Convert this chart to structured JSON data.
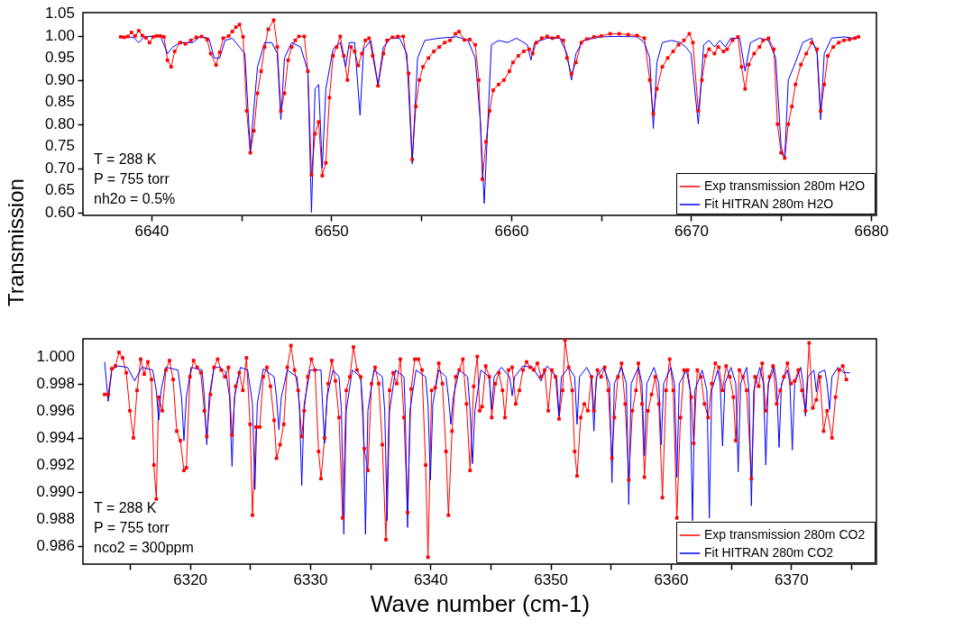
{
  "chart_data": [
    {
      "type": "line",
      "ylabel": "Transmission",
      "legend": "bottom right",
      "grid": false,
      "annotations": [
        "T = 288 K",
        "P = 755 torr",
        "nh2o = 0.5%"
      ],
      "xlim": [
        6636.2,
        6680.3
      ],
      "ylim": [
        0.593,
        1.053
      ],
      "xticks": [
        6640,
        {
          "value": 6645,
          "label": null
        },
        6650,
        {
          "value": 6655,
          "label": null
        },
        6660,
        {
          "value": 6665,
          "label": null
        },
        6670,
        {
          "value": 6675,
          "label": null
        },
        6680
      ],
      "yticks": [
        {
          "value": 0.6,
          "label": "0.60"
        },
        {
          "value": 0.65,
          "label": "0.65"
        },
        {
          "value": 0.7,
          "label": "0.70"
        },
        {
          "value": 0.75,
          "label": "0.75"
        },
        {
          "value": 0.8,
          "label": "0.80"
        },
        {
          "value": 0.85,
          "label": "0.85"
        },
        {
          "value": 0.9,
          "label": "0.90"
        },
        {
          "value": 0.95,
          "label": "0.95"
        },
        {
          "value": 1.0,
          "label": "1.00"
        },
        {
          "value": 1.05,
          "label": "1.05"
        }
      ],
      "series": [
        {
          "name": "Exp transmission   280m H2O",
          "color": "#ff0000",
          "marker": "square",
          "x": [
            6638.3,
            6638.5,
            6638.7,
            6638.9,
            6639.1,
            6639.3,
            6639.5,
            6639.7,
            6639.9,
            6640.1,
            6640.3,
            6640.5,
            6640.7,
            6640.9,
            6641.1,
            6641.3,
            6641.6,
            6641.9,
            6642.2,
            6642.5,
            6642.8,
            6643.1,
            6643.3,
            6643.6,
            6643.8,
            6644.0,
            6644.3,
            6644.5,
            6644.7,
            6644.9,
            6645.1,
            6645.3,
            6645.5,
            6645.7,
            6645.9,
            6646.1,
            6646.3,
            6646.5,
            6646.8,
            6647.0,
            6647.2,
            6647.4,
            6647.6,
            6647.8,
            6648.0,
            6648.2,
            6648.5,
            6648.7,
            6648.9,
            6649.1,
            6649.3,
            6649.5,
            6649.7,
            6649.9,
            6650.1,
            6650.3,
            6650.5,
            6650.7,
            6650.9,
            6651.1,
            6651.3,
            6651.5,
            6651.7,
            6651.9,
            6652.1,
            6652.3,
            6652.6,
            6652.9,
            6653.1,
            6653.4,
            6653.7,
            6654.0,
            6654.3,
            6654.5,
            6654.7,
            6654.9,
            6655.1,
            6655.4,
            6655.7,
            6656.0,
            6656.3,
            6656.6,
            6656.9,
            6657.1,
            6657.4,
            6657.7,
            6658.0,
            6658.2,
            6658.4,
            6658.6,
            6658.8,
            6659.0,
            6659.3,
            6659.6,
            6659.9,
            6660.1,
            6660.4,
            6660.7,
            6661.0,
            6661.2,
            6661.4,
            6661.7,
            6662.0,
            6662.3,
            6662.6,
            6662.9,
            6663.1,
            6663.35,
            6663.6,
            6663.9,
            6664.2,
            6664.6,
            6665.0,
            6665.5,
            6666.0,
            6666.5,
            6667.0,
            6667.4,
            6667.7,
            6667.9,
            6668.1,
            6668.4,
            6668.7,
            6669.0,
            6669.3,
            6669.6,
            6669.9,
            6670.1,
            6670.4,
            6670.6,
            6670.8,
            6671.0,
            6671.3,
            6671.5,
            6671.8,
            6672.0,
            6672.3,
            6672.6,
            6672.8,
            6673.0,
            6673.2,
            6673.5,
            6673.8,
            6674.0,
            6674.3,
            6674.6,
            6674.8,
            6675.0,
            6675.2,
            6675.4,
            6675.6,
            6675.8,
            6676.1,
            6676.4,
            6676.7,
            6677.0,
            6677.2,
            6677.4,
            6677.6,
            6677.9,
            6678.2,
            6678.5,
            6678.8,
            6679.1,
            6679.3
          ],
          "values": [
            0.998,
            0.997,
            0.999,
            1.008,
            1.0,
            1.012,
            1.001,
            0.996,
            0.985,
            0.998,
            1.0,
            1.0,
            0.998,
            0.945,
            0.93,
            0.965,
            0.985,
            0.982,
            0.99,
            0.997,
            0.999,
            0.992,
            0.96,
            0.934,
            0.963,
            0.995,
            1.0,
            1.01,
            1.02,
            1.026,
            0.998,
            0.83,
            0.735,
            0.785,
            0.87,
            0.92,
            0.975,
            1.015,
            1.036,
            0.975,
            0.83,
            0.87,
            0.945,
            0.975,
            0.99,
            0.999,
            0.999,
            0.92,
            0.685,
            0.778,
            0.805,
            0.683,
            0.712,
            0.86,
            0.955,
            0.975,
            0.999,
            0.955,
            0.9,
            0.975,
            0.965,
            0.933,
            0.96,
            0.99,
            0.995,
            0.955,
            0.887,
            0.96,
            0.99,
            0.997,
            0.999,
            0.999,
            0.915,
            0.72,
            0.84,
            0.9,
            0.93,
            0.95,
            0.965,
            0.975,
            0.985,
            0.99,
            1.005,
            1.01,
            0.991,
            0.992,
            0.98,
            0.9,
            0.675,
            0.76,
            0.83,
            0.877,
            0.89,
            0.9,
            0.92,
            0.94,
            0.955,
            0.965,
            0.97,
            0.96,
            0.985,
            0.995,
            0.999,
            0.995,
            0.998,
            0.99,
            0.95,
            0.914,
            0.94,
            0.985,
            0.993,
            0.998,
            1.0,
            1.005,
            1.005,
            1.003,
            1.001,
            0.995,
            0.9,
            0.823,
            0.88,
            0.93,
            0.95,
            0.965,
            0.98,
            0.99,
            1.005,
            0.985,
            0.83,
            0.9,
            0.955,
            0.97,
            0.96,
            0.975,
            0.965,
            0.97,
            0.99,
            0.998,
            0.93,
            0.88,
            0.935,
            0.96,
            0.975,
            0.99,
            0.995,
            0.97,
            0.8,
            0.735,
            0.723,
            0.8,
            0.84,
            0.89,
            0.935,
            0.96,
            0.985,
            0.97,
            0.83,
            0.89,
            0.955,
            0.975,
            0.985,
            0.99,
            0.992,
            0.995,
            0.998
          ]
        },
        {
          "name": "Fit HITRAN 280m H2O",
          "color": "#0000ff",
          "marker": "none",
          "x": [
            6638.3,
            6639.0,
            6639.3,
            6639.6,
            6640.5,
            6640.9,
            6641.2,
            6641.6,
            6642.0,
            6642.3,
            6642.7,
            6643.2,
            6643.5,
            6643.8,
            6644.1,
            6644.5,
            6644.9,
            6645.2,
            6645.5,
            6645.9,
            6646.3,
            6646.7,
            6647.0,
            6647.2,
            6647.4,
            6647.8,
            6648.3,
            6648.7,
            6648.9,
            6649.1,
            6649.3,
            6649.5,
            6649.7,
            6650.1,
            6650.5,
            6650.8,
            6651.0,
            6651.3,
            6651.6,
            6651.8,
            6652.2,
            6652.6,
            6652.9,
            6653.3,
            6653.8,
            6654.2,
            6654.5,
            6654.8,
            6655.2,
            6656.0,
            6657.0,
            6657.6,
            6658.0,
            6658.3,
            6658.5,
            6658.7,
            6658.9,
            6659.3,
            6659.8,
            6660.3,
            6660.9,
            6661.1,
            6661.3,
            6662.0,
            6662.7,
            6663.1,
            6663.35,
            6663.6,
            6664.0,
            6665.0,
            6666.0,
            6667.0,
            6667.4,
            6667.7,
            6667.9,
            6668.1,
            6668.4,
            6668.9,
            6669.4,
            6669.7,
            6670.0,
            6670.4,
            6670.7,
            6671.0,
            6671.3,
            6671.6,
            6671.9,
            6672.2,
            6672.7,
            6673.0,
            6673.3,
            6673.8,
            6674.3,
            6674.7,
            6675.0,
            6675.2,
            6675.4,
            6675.8,
            6676.2,
            6676.7,
            6677.0,
            6677.2,
            6677.4,
            6677.8,
            6678.5,
            6679.0,
            6679.3
          ],
          "values": [
            0.998,
            0.997,
            0.985,
            0.998,
            1.0,
            0.96,
            0.975,
            0.985,
            0.985,
            0.985,
            0.998,
            0.995,
            0.95,
            0.95,
            0.99,
            0.995,
            0.975,
            0.96,
            0.74,
            0.93,
            0.985,
            0.985,
            0.96,
            0.81,
            0.95,
            0.985,
            0.975,
            0.92,
            0.6,
            0.88,
            0.89,
            0.7,
            0.88,
            0.97,
            0.985,
            0.93,
            0.985,
            0.985,
            0.82,
            0.97,
            0.99,
            0.89,
            0.975,
            0.995,
            0.995,
            0.96,
            0.71,
            0.95,
            0.99,
            0.995,
            0.998,
            0.99,
            0.95,
            0.8,
            0.62,
            0.8,
            0.98,
            0.99,
            0.985,
            0.995,
            0.98,
            0.945,
            0.985,
            0.995,
            0.995,
            0.96,
            0.9,
            0.96,
            0.99,
            0.998,
            0.999,
            0.998,
            0.985,
            0.95,
            0.79,
            0.94,
            0.985,
            0.99,
            0.985,
            0.975,
            0.96,
            0.8,
            0.98,
            0.99,
            0.975,
            0.99,
            0.975,
            0.995,
            0.995,
            0.92,
            0.985,
            0.995,
            0.99,
            0.95,
            0.75,
            0.72,
            0.9,
            0.94,
            0.985,
            0.995,
            0.96,
            0.81,
            0.96,
            0.995,
            0.998,
            0.995,
            0.998
          ]
        }
      ]
    },
    {
      "type": "line",
      "xlabel": "Wave number (cm-1)",
      "legend": "bottom right",
      "grid": false,
      "annotations": [
        "T = 288 K",
        "P = 755 torr",
        "nco2 = 300ppm"
      ],
      "xlim": [
        6311.1,
        6377.1
      ],
      "ylim": [
        0.9847,
        1.0013
      ],
      "xticks": [
        {
          "value": 6315,
          "label": null
        },
        6320,
        {
          "value": 6325,
          "label": null
        },
        6330,
        {
          "value": 6335,
          "label": null
        },
        6340,
        {
          "value": 6345,
          "label": null
        },
        6350,
        {
          "value": 6355,
          "label": null
        },
        6360,
        {
          "value": 6365,
          "label": null
        },
        6370,
        {
          "value": 6375,
          "label": null
        }
      ],
      "yticks": [
        0.986,
        0.988,
        {
          "value": 0.99,
          "label": "0.990"
        },
        0.992,
        0.994,
        0.996,
        0.998,
        {
          "value": 1.0,
          "label": "1.000"
        }
      ],
      "series": [
        {
          "name": "Exp transmission   280m CO2",
          "color": "#ff0000",
          "marker": "square",
          "x": [
            6312.9,
            6313.2,
            6313.5,
            6313.8,
            6314.1,
            6314.4,
            6314.7,
            6315.0,
            6315.3,
            6315.6,
            6315.9,
            6316.2,
            6316.5,
            6316.8,
            6317.0,
            6317.2,
            6317.4,
            6317.7,
            6318.0,
            6318.3,
            6318.6,
            6318.9,
            6319.2,
            6319.5,
            6319.7,
            6320.0,
            6320.3,
            6320.6,
            6320.9,
            6321.2,
            6321.4,
            6321.7,
            6322.0,
            6322.3,
            6322.6,
            6322.9,
            6323.2,
            6323.5,
            6323.8,
            6324.1,
            6324.4,
            6324.7,
            6325.0,
            6325.2,
            6325.5,
            6325.8,
            6326.1,
            6326.4,
            6326.7,
            6327.0,
            6327.2,
            6327.5,
            6327.8,
            6328.1,
            6328.4,
            6328.7,
            6329.0,
            6329.3,
            6329.5,
            6329.8,
            6330.1,
            6330.4,
            6330.7,
            6330.9,
            6331.2,
            6331.5,
            6331.8,
            6332.1,
            6332.4,
            6332.7,
            6333.0,
            6333.3,
            6333.6,
            6333.9,
            6334.2,
            6334.5,
            6334.8,
            6335.1,
            6335.4,
            6335.7,
            6336.0,
            6336.3,
            6336.6,
            6336.9,
            6337.2,
            6337.5,
            6337.8,
            6338.1,
            6338.4,
            6338.7,
            6339.0,
            6339.3,
            6339.6,
            6339.8,
            6340.1,
            6340.4,
            6340.7,
            6341.0,
            6341.3,
            6341.5,
            6341.8,
            6342.1,
            6342.4,
            6342.7,
            6343.0,
            6343.3,
            6343.6,
            6343.9,
            6344.1,
            6344.3,
            6344.6,
            6344.9,
            6345.1,
            6345.4,
            6345.7,
            6346.0,
            6346.2,
            6346.5,
            6346.8,
            6347.1,
            6347.4,
            6347.7,
            6348.0,
            6348.3,
            6348.6,
            6348.9,
            6349.2,
            6349.5,
            6349.8,
            6350.1,
            6350.4,
            6350.7,
            6351.0,
            6351.2,
            6351.5,
            6351.8,
            6352.0,
            6352.2,
            6352.5,
            6352.8,
            6353.1,
            6353.4,
            6353.6,
            6353.9,
            6354.2,
            6354.5,
            6354.8,
            6355.1,
            6355.3,
            6355.6,
            6355.9,
            6356.2,
            6356.5,
            6356.8,
            6357.1,
            6357.3,
            6357.6,
            6357.8,
            6358.1,
            6358.4,
            6358.7,
            6359.0,
            6359.3,
            6359.6,
            6359.9,
            6360.2,
            6360.5,
            6360.8,
            6361.1,
            6361.4,
            6361.7,
            6361.9,
            6362.2,
            6362.5,
            6362.8,
            6363.1,
            6363.4,
            6363.7,
            6364.0,
            6364.3,
            6364.6,
            6364.9,
            6365.2,
            6365.4,
            6365.7,
            6366.0,
            6366.3,
            6366.7,
            6367.0,
            6367.3,
            6367.6,
            6367.9,
            6368.2,
            6368.5,
            6368.8,
            6369.1,
            6369.4,
            6369.7,
            6370.0,
            6370.3,
            6370.6,
            6370.9,
            6371.2,
            6371.5,
            6371.8,
            6372.1,
            6372.4,
            6372.7,
            6373.0,
            6373.4,
            6373.7,
            6374.0,
            6374.3,
            6374.6
          ],
          "values": [
            0.9972,
            0.9972,
            0.9991,
            0.9993,
            1.0003,
            0.9999,
            0.9988,
            0.996,
            0.994,
            0.9975,
            0.9998,
            0.9987,
            0.9996,
            0.9983,
            0.992,
            0.9895,
            0.997,
            0.996,
            0.999,
            0.9997,
            0.9983,
            0.9945,
            0.9938,
            0.9916,
            0.9918,
            0.9985,
            0.9997,
            0.9992,
            0.9988,
            0.996,
            0.9941,
            0.9972,
            0.9992,
            0.9998,
            0.999,
            0.9985,
            0.9992,
            0.9942,
            0.9978,
            0.9988,
            0.9975,
            0.9999,
            0.995,
            0.9883,
            0.9948,
            0.9948,
            0.9985,
            0.9992,
            0.9978,
            0.9953,
            0.9925,
            0.9935,
            0.995,
            0.9992,
            1.0008,
            0.999,
            0.9975,
            0.9941,
            0.996,
            0.9985,
            0.9998,
            0.999,
            0.993,
            0.991,
            0.994,
            0.998,
            0.9997,
            0.9982,
            0.9955,
            0.9881,
            0.9975,
            0.9985,
            1.0007,
            0.999,
            0.9985,
            0.9932,
            0.9916,
            0.998,
            0.9992,
            0.998,
            0.9935,
            0.9865,
            0.9975,
            0.9988,
            0.998,
            0.9998,
            0.9955,
            0.9885,
            0.9976,
            0.9998,
            0.9998,
            0.999,
            0.992,
            0.9852,
            0.9975,
            0.9977,
            0.9995,
            0.998,
            0.993,
            0.9883,
            0.9945,
            0.9985,
            0.999,
            0.9998,
            0.9965,
            0.9916,
            0.9978,
            1.0,
            0.996,
            0.9963,
            0.9993,
            0.9985,
            0.9955,
            0.998,
            0.9988,
            0.9975,
            0.9955,
            0.999,
            0.9992,
            0.9965,
            0.9975,
            0.999,
            0.9996,
            0.9992,
            0.999,
            0.9995,
            0.9985,
            0.999,
            0.996,
            0.999,
            0.9985,
            0.9954,
            0.9975,
            1.0012,
            0.9992,
            0.9975,
            0.993,
            0.9912,
            0.9955,
            0.9965,
            0.996,
            0.9985,
            0.996,
            0.999,
            0.9985,
            0.9992,
            0.9975,
            0.9925,
            0.9955,
            0.9985,
            0.9995,
            0.9965,
            0.9909,
            0.996,
            0.9975,
            0.9995,
            0.9965,
            0.9911,
            0.996,
            0.9972,
            0.9985,
            0.9965,
            0.9896,
            0.9975,
            0.9998,
            0.9975,
            0.9881,
            0.9955,
            0.999,
            0.999,
            0.997,
            0.9936,
            0.999,
            0.9985,
            0.9965,
            0.9955,
            0.998,
            0.9995,
            0.9992,
            0.9975,
            0.9993,
            0.9985,
            0.997,
            0.9938,
            0.999,
            0.9985,
            0.9975,
            0.991,
            0.9985,
            0.9978,
            0.9995,
            0.996,
            0.9985,
            0.9993,
            0.9965,
            0.9975,
            0.9985,
            0.9995,
            0.998,
            0.9982,
            0.999,
            0.9975,
            0.996,
            1.001,
            0.9962,
            0.9968,
            0.9985,
            0.9945,
            0.996,
            0.994,
            0.997,
            0.999,
            0.9993,
            0.9983
          ]
        },
        {
          "name": "Fit HITRAN 280m CO2",
          "color": "#0000ff",
          "marker": "none",
          "x": [
            6312.9,
            6313.2,
            6313.5,
            6314.0,
            6314.8,
            6315.4,
            6316.0,
            6316.9,
            6317.2,
            6317.4,
            6317.6,
            6318.0,
            6319.0,
            6319.3,
            6319.5,
            6319.7,
            6320.1,
            6321.0,
            6321.2,
            6321.4,
            6321.6,
            6322.0,
            6322.5,
            6323.0,
            6323.3,
            6323.5,
            6323.7,
            6324.2,
            6324.8,
            6325.2,
            6325.4,
            6325.6,
            6326.1,
            6327.0,
            6327.2,
            6327.4,
            6327.6,
            6328.1,
            6328.9,
            6329.1,
            6329.3,
            6329.5,
            6330.0,
            6330.9,
            6331.0,
            6331.2,
            6331.4,
            6331.9,
            6332.4,
            6332.6,
            6332.8,
            6333.0,
            6333.5,
            6334.2,
            6334.4,
            6334.6,
            6334.8,
            6335.3,
            6336.0,
            6336.2,
            6336.4,
            6336.6,
            6337.1,
            6337.8,
            6337.9,
            6338.1,
            6338.3,
            6338.8,
            6339.6,
            6339.8,
            6340.0,
            6340.2,
            6340.7,
            6341.3,
            6341.5,
            6341.7,
            6341.9,
            6342.4,
            6343.1,
            6343.3,
            6343.5,
            6343.7,
            6344.2,
            6344.9,
            6345.1,
            6345.3,
            6345.9,
            6346.6,
            6346.8,
            6347.0,
            6347.7,
            6348.5,
            6349.2,
            6349.7,
            6350.5,
            6350.7,
            6350.9,
            6351.5,
            6352.0,
            6352.2,
            6352.4,
            6353.0,
            6353.4,
            6353.6,
            6353.8,
            6354.4,
            6354.9,
            6355.1,
            6355.3,
            6355.9,
            6356.3,
            6356.5,
            6356.7,
            6357.3,
            6357.6,
            6357.8,
            6358.0,
            6358.6,
            6359.0,
            6359.2,
            6359.4,
            6360.0,
            6360.3,
            6360.5,
            6360.7,
            6361.3,
            6361.6,
            6361.8,
            6362.0,
            6362.6,
            6363.0,
            6363.2,
            6363.4,
            6363.9,
            6364.1,
            6364.3,
            6364.5,
            6365.0,
            6365.4,
            6365.6,
            6365.8,
            6366.3,
            6366.5,
            6366.7,
            6366.9,
            6367.4,
            6367.7,
            6367.9,
            6368.1,
            6368.6,
            6368.8,
            6369.0,
            6369.2,
            6369.7,
            6369.9,
            6370.1,
            6370.3,
            6370.8,
            6371.0,
            6371.2,
            6371.4,
            6371.9,
            6372.1,
            6372.3,
            6372.8,
            6373.0,
            6373.2,
            6373.4,
            6373.9,
            6374.4,
            6374.9
          ],
          "values": [
            0.9996,
            0.9967,
            0.999,
            0.9993,
            0.9992,
            0.9982,
            0.9992,
            0.999,
            0.9975,
            0.9953,
            0.9975,
            0.9992,
            0.999,
            0.997,
            0.9938,
            0.997,
            0.9992,
            0.999,
            0.997,
            0.9935,
            0.997,
            0.9992,
            0.9992,
            0.9988,
            0.997,
            0.9919,
            0.997,
            0.9992,
            0.999,
            0.9965,
            0.9902,
            0.9965,
            0.9991,
            0.9985,
            0.997,
            0.9946,
            0.997,
            0.999,
            0.9985,
            0.9965,
            0.9905,
            0.9965,
            0.999,
            0.999,
            0.997,
            0.9936,
            0.997,
            0.999,
            0.9985,
            0.996,
            0.9869,
            0.996,
            0.999,
            0.9985,
            0.996,
            0.9869,
            0.996,
            0.999,
            0.9985,
            0.996,
            0.9879,
            0.996,
            0.999,
            0.9985,
            0.996,
            0.9874,
            0.996,
            0.999,
            0.9985,
            0.9965,
            0.9909,
            0.9965,
            0.999,
            0.9985,
            0.997,
            0.995,
            0.997,
            0.999,
            0.9985,
            0.996,
            0.9921,
            0.996,
            0.999,
            0.9985,
            0.9961,
            0.9985,
            0.9992,
            0.9985,
            0.9971,
            0.9985,
            0.9993,
            0.9992,
            0.9982,
            0.9993,
            0.9985,
            0.9956,
            0.9985,
            0.9992,
            0.9985,
            0.995,
            0.9985,
            0.9992,
            0.9985,
            0.9945,
            0.9985,
            0.9992,
            0.998,
            0.9907,
            0.998,
            0.9992,
            0.998,
            0.9891,
            0.998,
            0.9992,
            0.998,
            0.9927,
            0.998,
            0.9992,
            0.998,
            0.9935,
            0.998,
            0.9992,
            0.998,
            0.9911,
            0.998,
            0.999,
            0.9975,
            0.9879,
            0.9975,
            0.999,
            0.9975,
            0.9881,
            0.9975,
            0.999,
            0.998,
            0.9934,
            0.998,
            0.9992,
            0.998,
            0.9915,
            0.998,
            0.9992,
            0.9975,
            0.989,
            0.9975,
            0.9992,
            0.998,
            0.992,
            0.998,
            0.9992,
            0.998,
            0.9933,
            0.998,
            0.999,
            0.998,
            0.9931,
            0.998,
            0.9992,
            0.998,
            0.9956,
            0.9985,
            0.999,
            0.9974,
            0.9988,
            0.999,
            0.998,
            0.9961,
            0.9985,
            0.9992,
            0.9988,
            0.9988
          ]
        }
      ]
    }
  ]
}
